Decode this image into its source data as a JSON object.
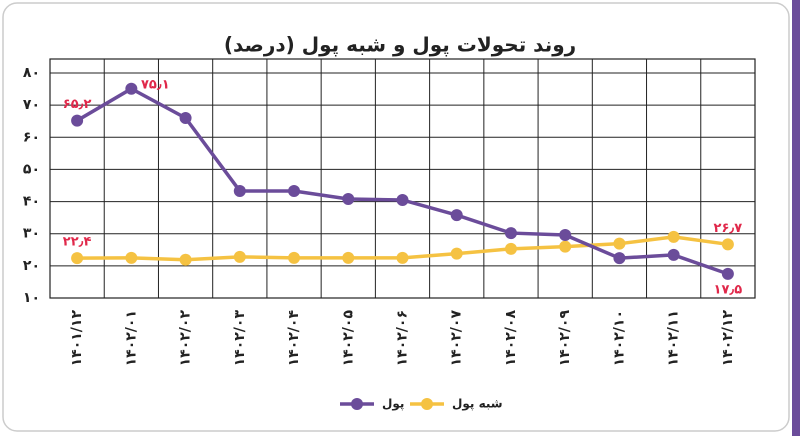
{
  "chart_data": {
    "type": "line",
    "title": "روند تحولات پول و شبه پول (درصد)",
    "categories": [
      "۱۴۰۱/۱۲",
      "۱۴۰۲/۰۱",
      "۱۴۰۲/۰۲",
      "۱۴۰۲/۰۳",
      "۱۴۰۲/۰۴",
      "۱۴۰۲/۰۵",
      "۱۴۰۲/۰۶",
      "۱۴۰۲/۰۷",
      "۱۴۰۲/۰۸",
      "۱۴۰۲/۰۹",
      "۱۴۰۲/۱۰",
      "۱۴۰۲/۱۱",
      "۱۴۰۲/۱۲"
    ],
    "series": [
      {
        "name": "پول",
        "color": "#6b4c9a",
        "values": [
          65.2,
          75.1,
          66,
          43.3,
          43.3,
          40.8,
          40.5,
          35.8,
          30.2,
          29.6,
          22.4,
          23.4,
          17.5
        ],
        "value_labels": [
          "۶۵٫۲",
          "۷۵٫۱",
          null,
          null,
          null,
          null,
          null,
          null,
          null,
          null,
          null,
          null,
          "۱۷٫۵"
        ]
      },
      {
        "name": "شبه پول",
        "color": "#f5c242",
        "values": [
          22.4,
          22.5,
          21.9,
          22.8,
          22.5,
          22.5,
          22.5,
          23.8,
          25.3,
          26,
          26.9,
          29,
          26.7
        ],
        "value_labels": [
          "۲۲٫۴",
          null,
          null,
          null,
          null,
          null,
          null,
          null,
          null,
          null,
          null,
          null,
          "۲۶٫۷"
        ]
      }
    ],
    "ylim": [
      10,
      80
    ],
    "yticks": [
      {
        "value": 10,
        "label": "۱۰"
      },
      {
        "value": 20,
        "label": "۲۰"
      },
      {
        "value": 30,
        "label": "۳۰"
      },
      {
        "value": 40,
        "label": "۴۰"
      },
      {
        "value": 50,
        "label": "۵۰"
      },
      {
        "value": 60,
        "label": "۶۰"
      },
      {
        "value": 70,
        "label": "۷۰"
      },
      {
        "value": 80,
        "label": "۸۰"
      }
    ],
    "grid": true,
    "legend": "bottom"
  }
}
